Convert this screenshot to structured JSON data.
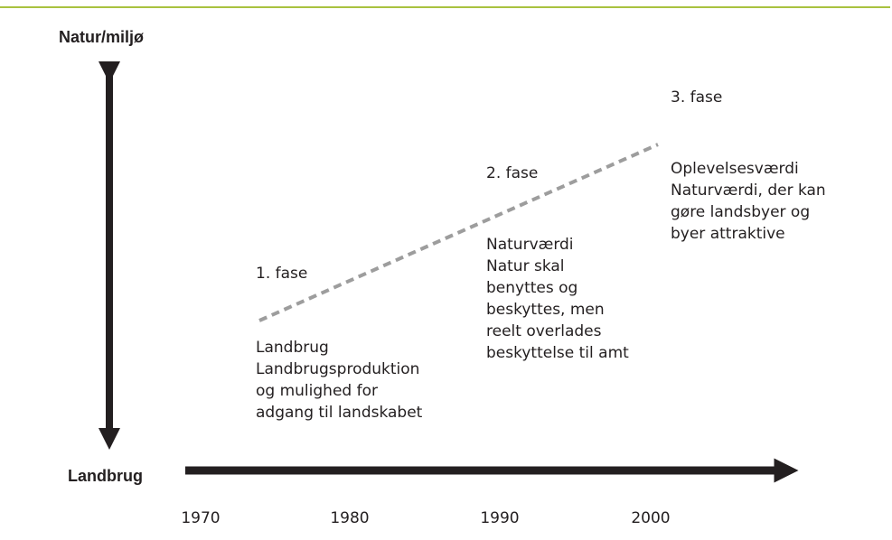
{
  "y_axis": {
    "label": "Natur/miljø"
  },
  "x_axis": {
    "label": "Landbrug",
    "years": [
      "1970",
      "1980",
      "1990",
      "2000"
    ]
  },
  "phases": [
    {
      "title": "1. fase",
      "lines": [
        "Landbrug",
        "Landbrugsproduktion",
        "og mulighed for",
        "adgang til landskabet"
      ]
    },
    {
      "title": "2. fase",
      "lines": [
        "Naturværdi",
        "Natur skal",
        "benyttes og",
        "beskyttes, men",
        "reelt overlades",
        "beskyttelse til amt"
      ]
    },
    {
      "title": "3. fase",
      "lines": [
        "Oplevelsesværdi",
        "Naturværdi, der kan",
        "gøre landsbyer og",
        "byer attraktive"
      ]
    }
  ]
}
